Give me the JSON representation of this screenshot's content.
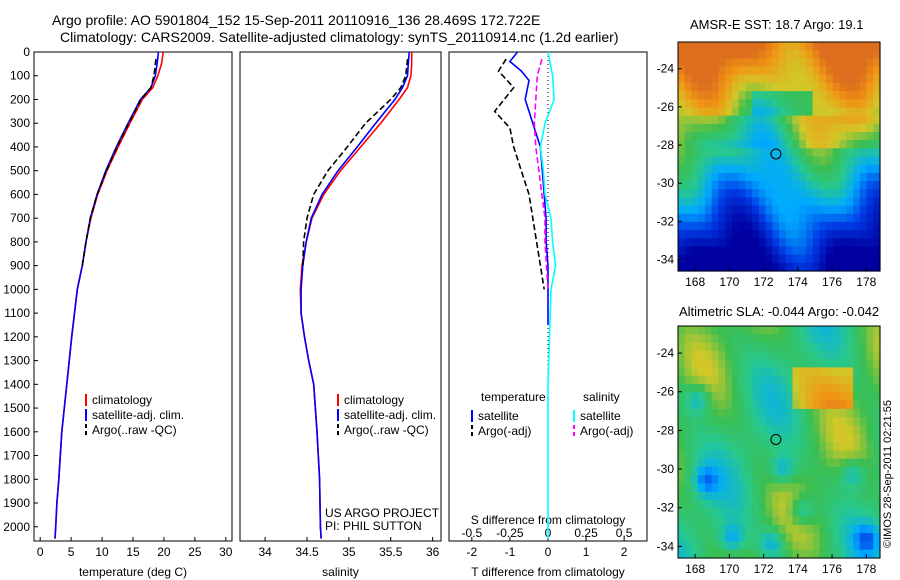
{
  "header": {
    "line1": "Argo profile: AO 5901804_152 15-Sep-2011 20110916_136 28.469S 172.722E",
    "line2": "Climatology: CARS2009. Satellite-adjusted climatology: synTS_20110914.nc (1.2d earlier)"
  },
  "stamp": "©IMOS 28-Sep-2011 02:21:55",
  "colors": {
    "climatology": "#ff0000",
    "satellite": "#0000ff",
    "argo": "#000000",
    "sat_salinity": "#00ffff",
    "argo_salinity": "#ff00ff"
  },
  "chart_data": [
    {
      "type": "line",
      "id": "temperature",
      "xlabel": "temperature (deg C)",
      "ylabel": "",
      "xlim": [
        -1,
        31
      ],
      "ylim": [
        2060,
        0
      ],
      "xticks": [
        0,
        5,
        10,
        15,
        20,
        25,
        30
      ],
      "yticks": [
        0,
        100,
        200,
        300,
        400,
        500,
        600,
        700,
        800,
        900,
        1000,
        1100,
        1200,
        1300,
        1400,
        1500,
        1600,
        1700,
        1800,
        1900,
        2000
      ],
      "legend": [
        "climatology",
        "satellite-adj. clim.",
        "Argo(..raw -QC)"
      ],
      "series": [
        {
          "name": "climatology",
          "style": "solid",
          "color": "#ff0000",
          "x": [
            19.9,
            19.6,
            19.0,
            18.2,
            16.5,
            14.5,
            12.6,
            10.8,
            9.3,
            8.2,
            7.4,
            6.8,
            6.0,
            5.1,
            4.3,
            3.9,
            3.5,
            3.0,
            2.7,
            2.5,
            2.4
          ],
          "y": [
            0,
            50,
            100,
            150,
            200,
            300,
            400,
            500,
            600,
            700,
            800,
            900,
            1000,
            1200,
            1400,
            1500,
            1600,
            1800,
            1900,
            2000,
            2050
          ]
        },
        {
          "name": "satellite-adj. clim.",
          "style": "solid",
          "color": "#0000ff",
          "x": [
            19.1,
            18.9,
            18.6,
            17.9,
            16.2,
            14.2,
            12.3,
            10.6,
            9.2,
            8.1,
            7.4,
            6.8,
            6.0,
            5.1,
            4.3,
            3.9,
            3.5,
            3.0,
            2.7,
            2.5,
            2.4
          ],
          "y": [
            0,
            50,
            100,
            150,
            200,
            300,
            400,
            500,
            600,
            700,
            800,
            900,
            1000,
            1200,
            1400,
            1500,
            1600,
            1800,
            1900,
            2000,
            2050
          ]
        },
        {
          "name": "Argo(..raw -QC)",
          "style": "dashed",
          "color": "#000000",
          "x": [
            18.7,
            18.4,
            17.9,
            16.3,
            14.3,
            12.4,
            10.7,
            9.2,
            8.1,
            7.4,
            6.8
          ],
          "y": [
            30,
            100,
            150,
            200,
            300,
            400,
            500,
            600,
            700,
            800,
            900
          ]
        }
      ]
    },
    {
      "type": "line",
      "id": "salinity",
      "xlabel": "salinity",
      "ylabel": "",
      "xlim": [
        33.7,
        36.1
      ],
      "ylim": [
        2060,
        0
      ],
      "xticks": [
        34,
        34.5,
        35,
        35.5,
        36
      ],
      "legend": [
        "climatology",
        "satellite-adj. clim.",
        "Argo(..raw -QC)"
      ],
      "series": [
        {
          "name": "climatology",
          "style": "solid",
          "color": "#ff0000",
          "x": [
            35.75,
            35.75,
            35.74,
            35.7,
            35.6,
            35.38,
            35.14,
            34.9,
            34.7,
            34.56,
            34.49,
            34.44,
            34.42,
            34.43,
            34.47,
            34.52,
            34.58,
            34.62,
            34.65,
            34.66,
            34.67
          ],
          "y": [
            0,
            50,
            100,
            150,
            200,
            300,
            400,
            500,
            600,
            700,
            800,
            900,
            1000,
            1100,
            1200,
            1300,
            1400,
            1600,
            1800,
            2000,
            2050
          ]
        },
        {
          "name": "satellite-adj. clim.",
          "style": "solid",
          "color": "#0000ff",
          "x": [
            35.72,
            35.71,
            35.7,
            35.64,
            35.55,
            35.32,
            35.1,
            34.87,
            34.68,
            34.55,
            34.49,
            34.45,
            34.43,
            34.43,
            34.47,
            34.52,
            34.58,
            34.62,
            34.65,
            34.66,
            34.67
          ],
          "y": [
            0,
            50,
            100,
            150,
            200,
            300,
            400,
            500,
            600,
            700,
            800,
            900,
            1000,
            1100,
            1200,
            1300,
            1400,
            1600,
            1800,
            2000,
            2050
          ]
        },
        {
          "name": "Argo(..raw -QC)",
          "style": "dashed",
          "color": "#000000",
          "x": [
            35.7,
            35.68,
            35.62,
            35.5,
            35.2,
            34.98,
            34.75,
            34.58,
            34.5,
            34.46,
            34.45
          ],
          "y": [
            30,
            100,
            150,
            200,
            300,
            400,
            500,
            600,
            700,
            800,
            900
          ]
        }
      ],
      "annotation": [
        "US ARGO PROJECT",
        "PI: PHIL SUTTON"
      ]
    },
    {
      "type": "line",
      "id": "difference",
      "xlabel": "T difference from climatology",
      "xlabel_top": "S difference from climatology",
      "xlim": [
        -2.6,
        2.6
      ],
      "ylim": [
        2060,
        0
      ],
      "xticks_T": [
        "-2",
        "-1",
        "0",
        "1",
        "2"
      ],
      "xticks_S": [
        "-0.5",
        "-0.25",
        "0",
        "0.25",
        "0.5"
      ],
      "legend_headers": [
        "temperature",
        "salinity"
      ],
      "legend": [
        "satellite",
        "Argo(-adj)",
        "satellite",
        "Argo(-adj)"
      ],
      "series": [
        {
          "name": "satellite",
          "quantity": "temperature",
          "style": "solid",
          "color": "#0000ff",
          "x": [
            -0.8,
            -1.0,
            -0.7,
            -0.5,
            -0.6,
            -0.4,
            -0.2,
            -0.15,
            -0.1,
            -0.05,
            -0.05,
            0,
            0,
            0
          ],
          "y": [
            0,
            40,
            80,
            120,
            200,
            300,
            400,
            500,
            600,
            700,
            800,
            900,
            1000,
            1150
          ]
        },
        {
          "name": "Argo(-adj)",
          "quantity": "temperature",
          "style": "dashed",
          "color": "#000000",
          "x": [
            -1.1,
            -1.3,
            -0.9,
            -1.4,
            -1.0,
            -0.9,
            -0.7,
            -0.5,
            -0.4,
            -0.3,
            -0.2,
            -0.1
          ],
          "y": [
            30,
            80,
            150,
            250,
            320,
            400,
            500,
            600,
            700,
            800,
            900,
            1000
          ]
        },
        {
          "name": "satellite",
          "quantity": "salinity",
          "style": "solid",
          "color": "#00ffff",
          "x": [
            0,
            0.03,
            0.04,
            -0.02,
            -0.05,
            -0.03,
            -0.02,
            0.02,
            0.03,
            0.05,
            0.02,
            0.01,
            0,
            0,
            0
          ],
          "y": [
            0,
            100,
            200,
            300,
            400,
            500,
            600,
            700,
            800,
            900,
            1000,
            1200,
            1400,
            1700,
            2050
          ]
        },
        {
          "name": "Argo(-adj)",
          "quantity": "salinity",
          "style": "dashed",
          "color": "#ff00ff",
          "x": [
            -0.04,
            -0.07,
            -0.08,
            -0.09,
            -0.08,
            -0.06,
            -0.04,
            -0.02,
            -0.02,
            -0.01,
            0
          ],
          "y": [
            30,
            100,
            200,
            300,
            400,
            500,
            600,
            700,
            800,
            900,
            1000
          ]
        }
      ]
    },
    {
      "type": "heatmap",
      "id": "sst_map",
      "title": "AMSR-E SST: 18.7 Argo: 19.1",
      "xlim": [
        167,
        178.8
      ],
      "ylim": [
        -34.6,
        -22.6
      ],
      "xticks": [
        168,
        170,
        172,
        174,
        176,
        178
      ],
      "yticks": [
        -24,
        -26,
        -28,
        -30,
        -32,
        -34
      ],
      "marker": {
        "lon": 172.722,
        "lat": -28.469
      }
    },
    {
      "type": "heatmap",
      "id": "sla_map",
      "title": "Altimetric SLA: -0.044 Argo: -0.042",
      "xlim": [
        167,
        178.8
      ],
      "ylim": [
        -34.6,
        -22.6
      ],
      "xticks": [
        168,
        170,
        172,
        174,
        176,
        178
      ],
      "yticks": [
        -24,
        -26,
        -28,
        -30,
        -32,
        -34
      ],
      "marker": {
        "lon": 172.722,
        "lat": -28.469
      }
    }
  ]
}
